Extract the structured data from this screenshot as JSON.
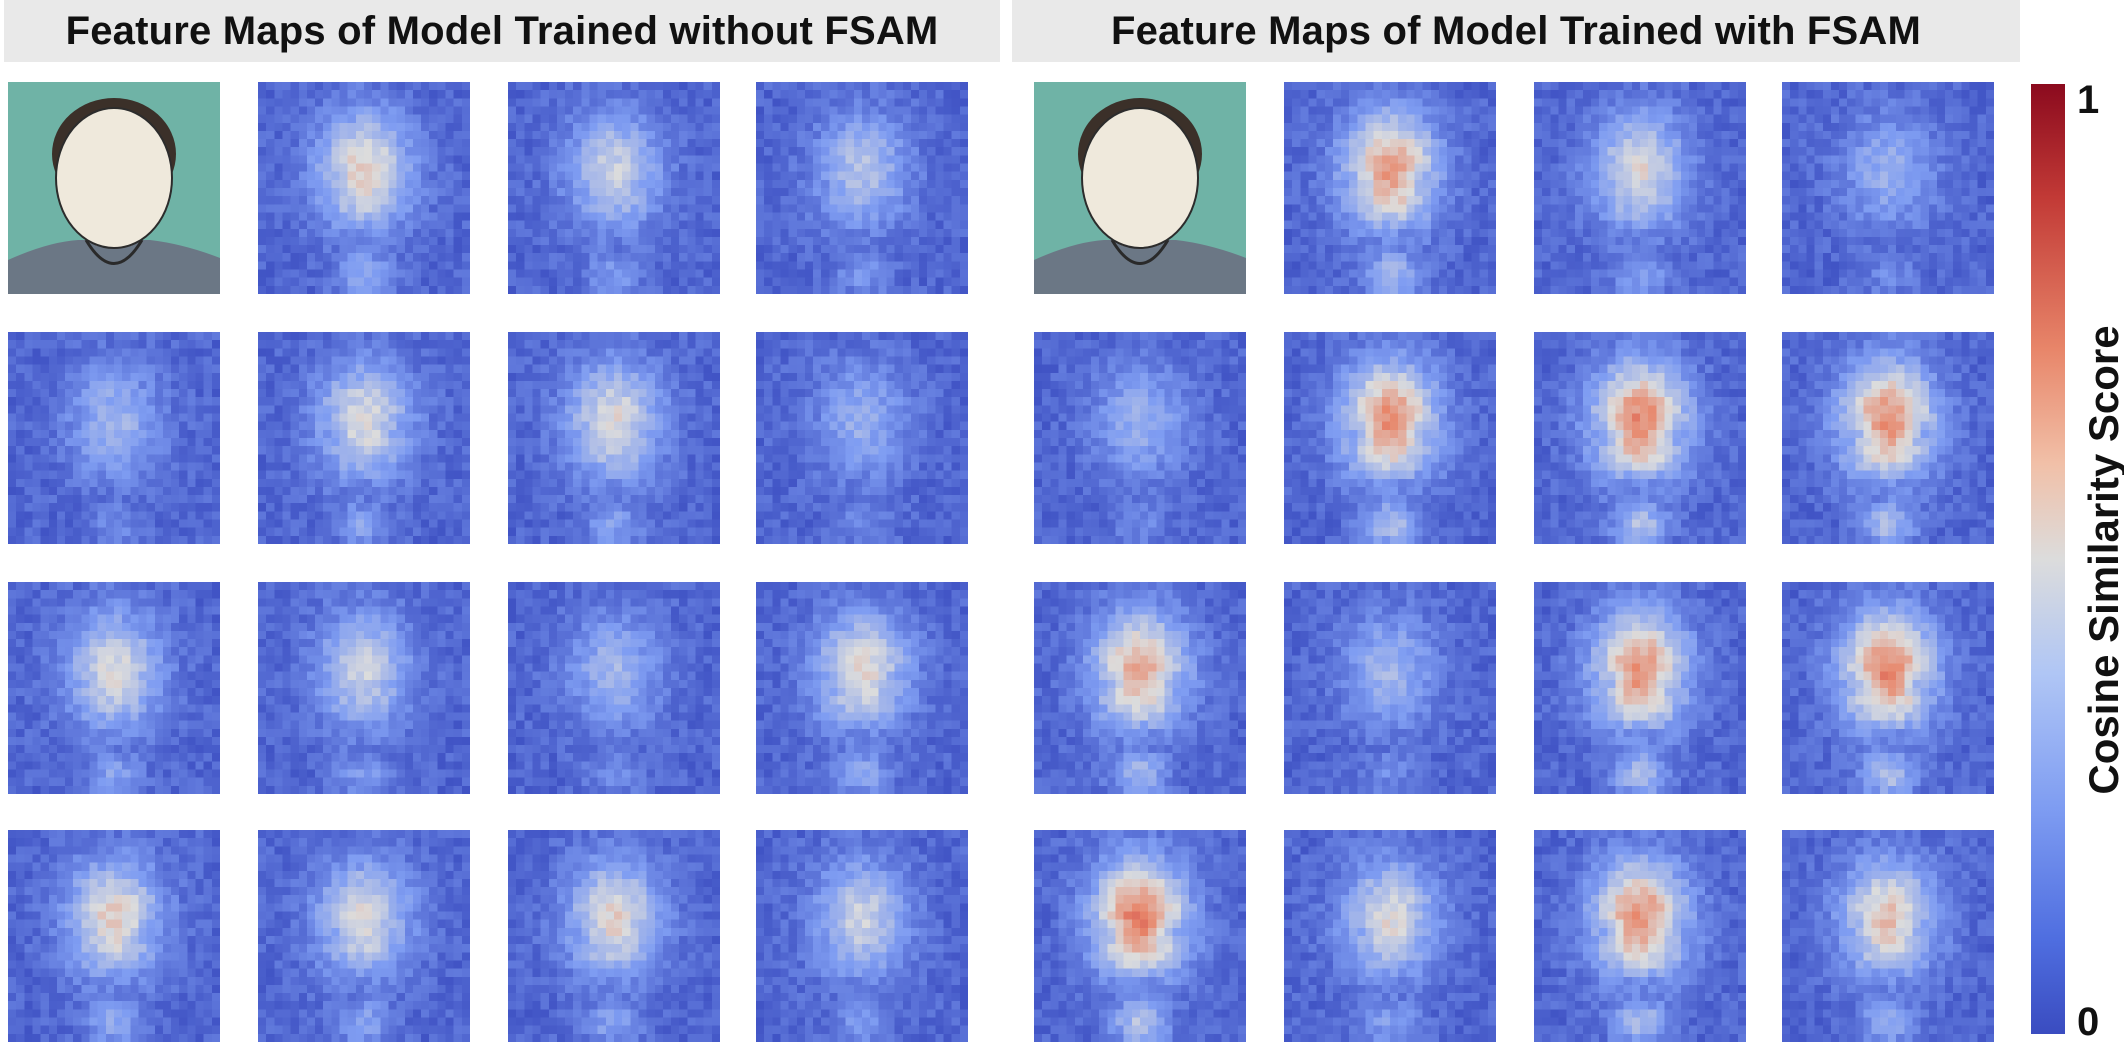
{
  "panels": {
    "left_title": "Feature Maps of Model Trained without FSAM",
    "right_title": "Feature Maps of Model Trained with FSAM"
  },
  "colorbar": {
    "title": "Cosine Similarity Score",
    "max_label": "1",
    "min_label": "0",
    "colors": [
      "#3a4cc0",
      "#7f9df2",
      "#dcdcdc",
      "#e8866a",
      "#b40426"
    ]
  },
  "grid": {
    "rows": 4,
    "cols_per_panel": 4,
    "photo_cells": [
      [
        0,
        0
      ]
    ],
    "left_intensity": [
      [
        null,
        0.55,
        0.35,
        0.25
      ],
      [
        0.15,
        0.45,
        0.45,
        0.1
      ],
      [
        0.45,
        0.35,
        0.15,
        0.5
      ],
      [
        0.55,
        0.45,
        0.5,
        0.35
      ]
    ],
    "right_intensity": [
      [
        null,
        0.8,
        0.45,
        0.1
      ],
      [
        0.1,
        0.85,
        0.9,
        0.85
      ],
      [
        0.75,
        0.15,
        0.85,
        0.9
      ],
      [
        0.95,
        0.45,
        0.85,
        0.6
      ]
    ]
  }
}
